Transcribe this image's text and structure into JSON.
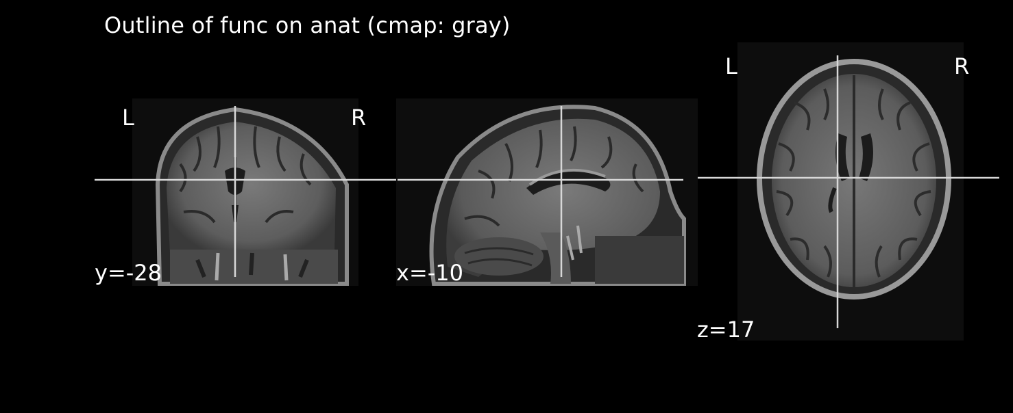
{
  "title": "Outline of func on anat (cmap: gray)",
  "colors": {
    "background": "#000000",
    "crosshair": "#d8d8d8",
    "text": "#ffffff"
  },
  "panels": {
    "coronal": {
      "view": "coronal",
      "left_label": "L",
      "right_label": "R",
      "coord_label": "y=-28"
    },
    "sagittal": {
      "view": "sagittal",
      "coord_label": "x=-10"
    },
    "axial": {
      "view": "axial",
      "left_label": "L",
      "right_label": "R",
      "coord_label": "z=17"
    }
  }
}
